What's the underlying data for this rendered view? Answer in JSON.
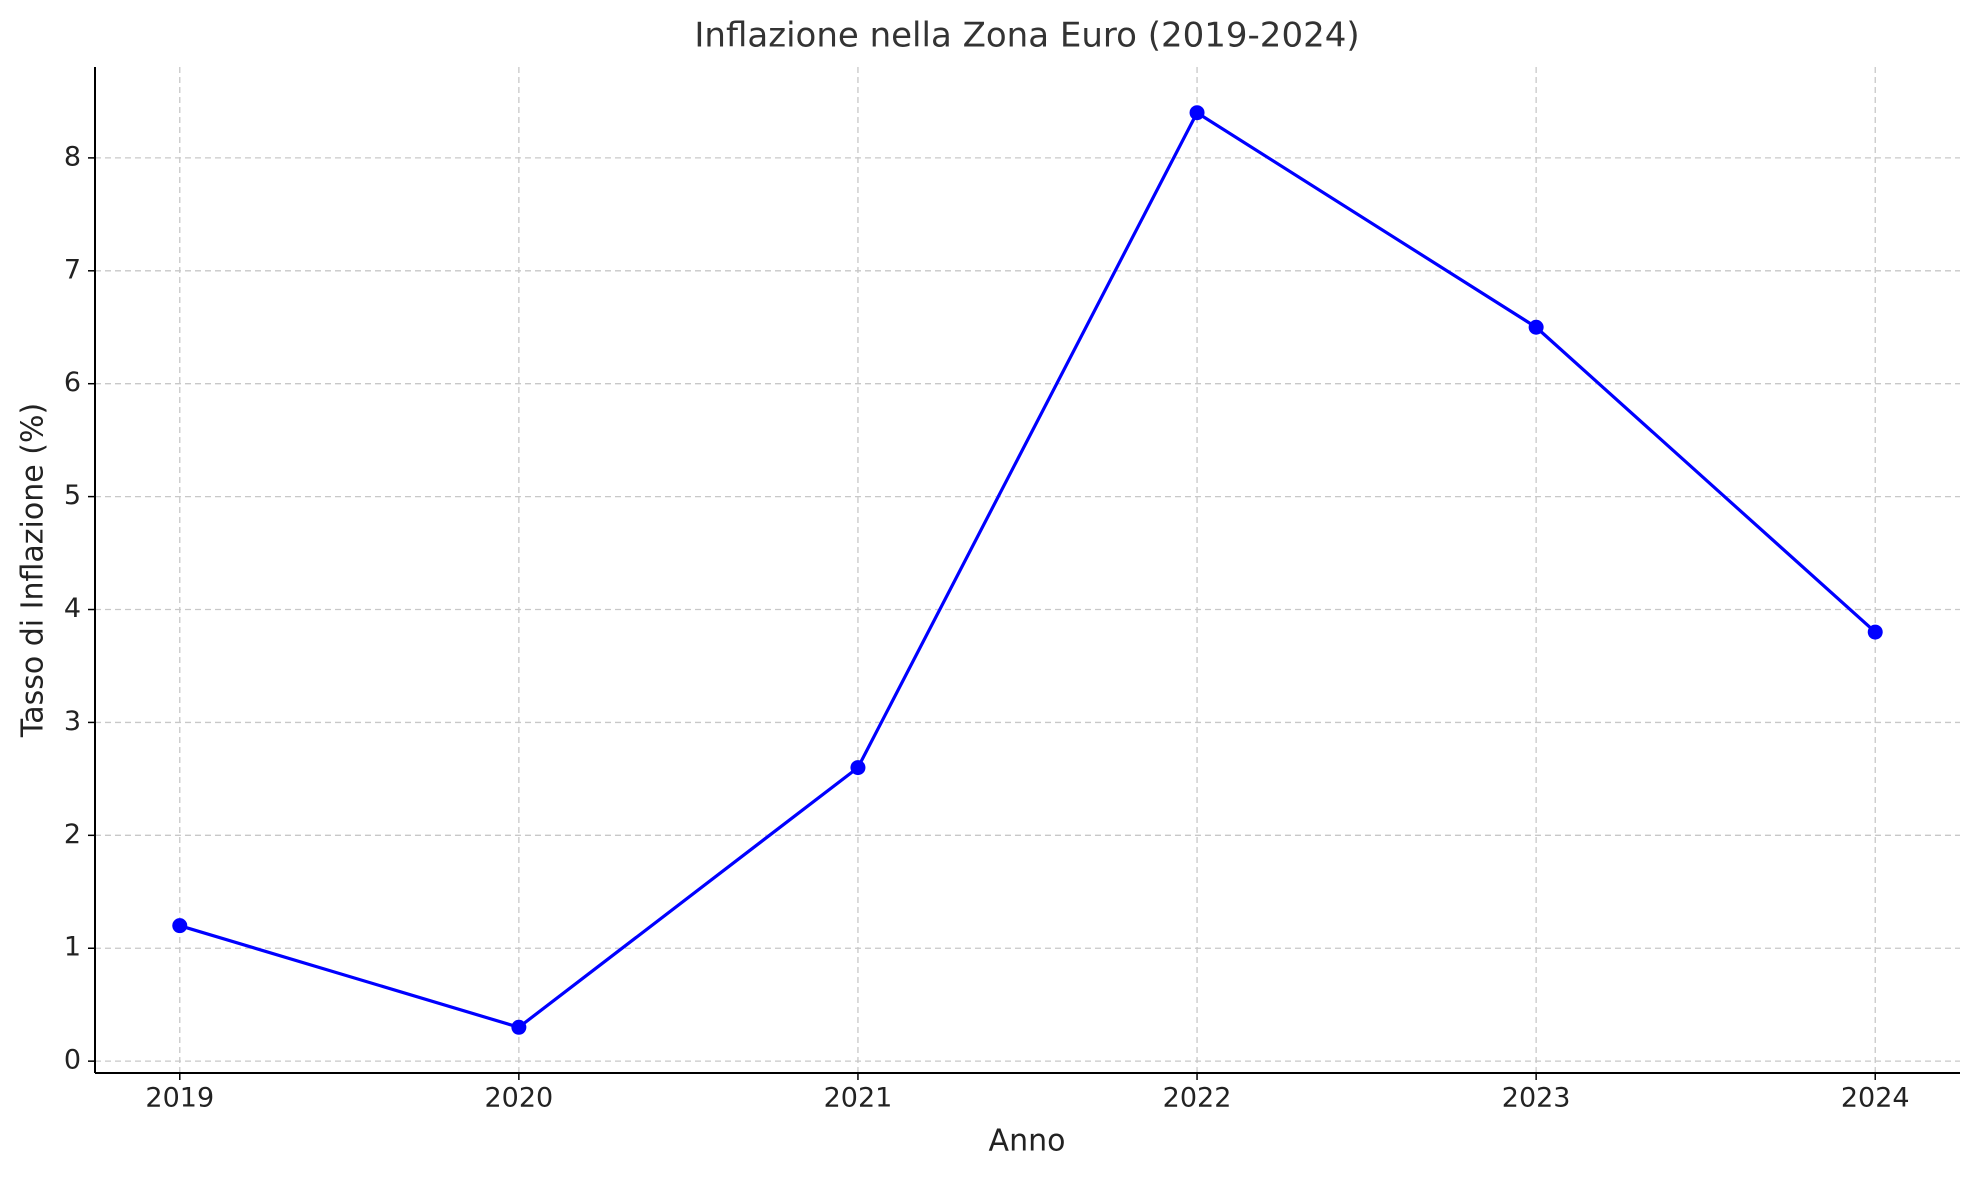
{
  "chart_data": {
    "type": "line",
    "title": "Inflazione nella Zona Euro (2019-2024)",
    "x_label": "Anno",
    "y_label": "Tasso di Inflazione (%)",
    "x": [
      2019,
      2020,
      2021,
      2022,
      2023,
      2024
    ],
    "values": [
      1.2,
      0.3,
      2.6,
      8.4,
      6.5,
      3.8
    ],
    "color": "#0000ff",
    "markers": true,
    "xlim": [
      2018.75,
      2024.25
    ],
    "xticks": [
      2019,
      2020,
      2021,
      2022,
      2023,
      2024
    ],
    "ylim": [
      -0.105,
      8.805
    ],
    "yticks": [
      0,
      1,
      2,
      3,
      4,
      5,
      6,
      7,
      8
    ],
    "grid": true
  }
}
